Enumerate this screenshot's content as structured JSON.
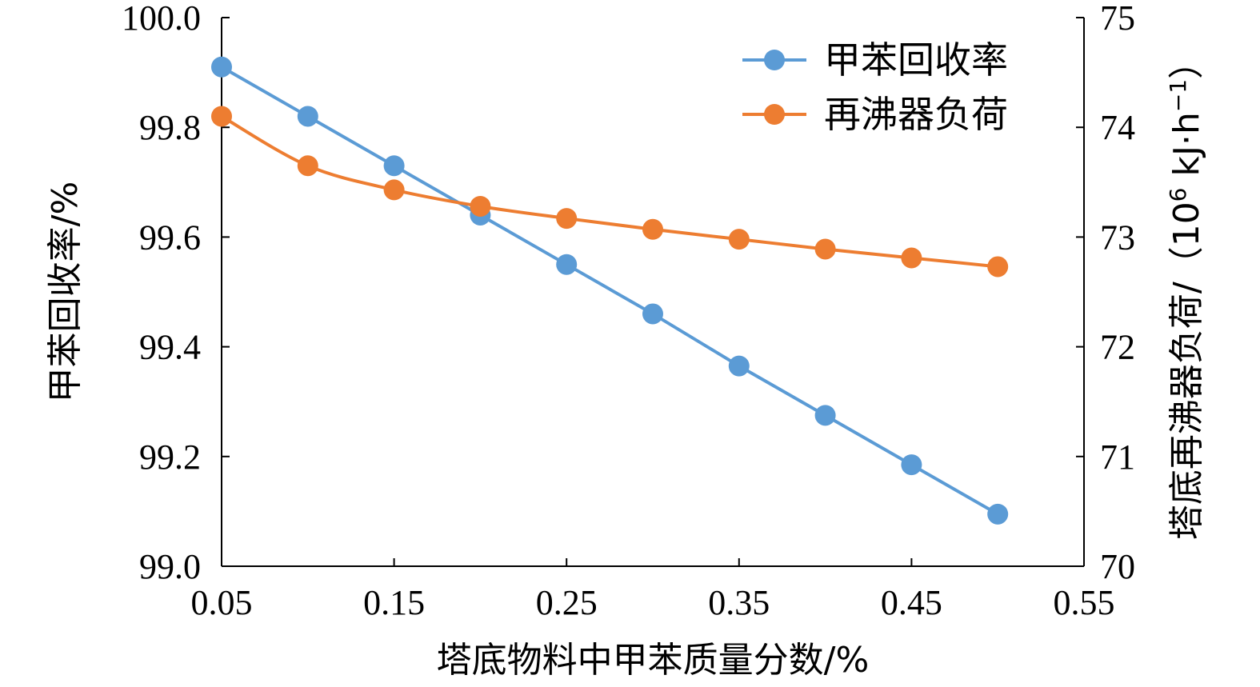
{
  "chart_data": {
    "type": "line",
    "x": [
      0.05,
      0.1,
      0.15,
      0.2,
      0.25,
      0.3,
      0.35,
      0.4,
      0.45,
      0.5
    ],
    "xlim": [
      0.05,
      0.55
    ],
    "x_ticks": [
      "0.05",
      "0.15",
      "0.25",
      "0.35",
      "0.45",
      "0.55"
    ],
    "xlabel": "塔底物料中甲苯质量分数/%",
    "y_left": {
      "label": "甲苯回收率/%",
      "lim": [
        99.0,
        100.0
      ],
      "ticks": [
        "99.0",
        "99.2",
        "99.4",
        "99.6",
        "99.8",
        "100.0"
      ]
    },
    "y_right": {
      "label_prefix": "塔底再沸器负荷/（10",
      "label_sup1": "6",
      "label_mid": " kJ·h",
      "label_sup2": "−1",
      "label_suffix": "）",
      "lim": [
        70,
        75
      ],
      "ticks": [
        "70",
        "71",
        "72",
        "73",
        "74",
        "75"
      ]
    },
    "series": [
      {
        "name": "甲苯回收率",
        "axis": "left",
        "color": "#5B9BD5",
        "smooth": false,
        "values": [
          99.91,
          99.82,
          99.73,
          99.64,
          99.55,
          99.46,
          99.365,
          99.275,
          99.185,
          99.095
        ]
      },
      {
        "name": "再沸器负荷",
        "axis": "right",
        "color": "#ED7D31",
        "smooth": true,
        "values": [
          74.1,
          73.65,
          73.43,
          73.28,
          73.17,
          73.07,
          72.98,
          72.89,
          72.81,
          72.73
        ]
      }
    ],
    "legend": "top-right",
    "grid": false
  }
}
